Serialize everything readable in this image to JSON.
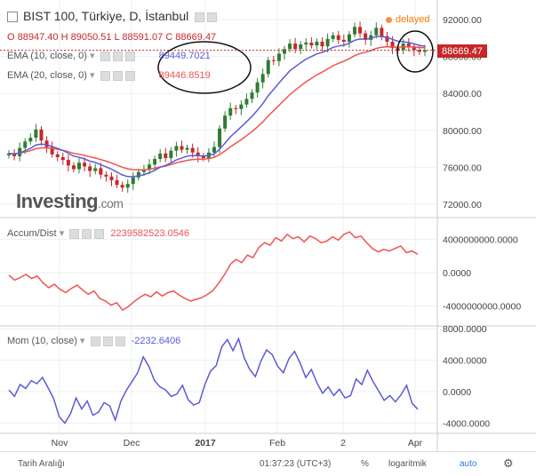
{
  "header": {
    "title": "BIST 100, Türkiye, D, İstanbul",
    "ohlc": {
      "o_label": "O",
      "o": "88947.40",
      "h_label": "H",
      "h": "89050.51",
      "l_label": "L",
      "l": "88591.07",
      "c_label": "C",
      "c": "88669.47"
    },
    "delayed": "delayed"
  },
  "indicators": {
    "ema10": {
      "label": "EMA (10, close, 0)",
      "value": "89449.7021"
    },
    "ema20": {
      "label": "EMA (20, close, 0)",
      "value": "89446.8519"
    },
    "accum": {
      "label": "Accum/Dist",
      "value": "2239582523.0546"
    },
    "mom": {
      "label": "Mom (10, close)",
      "value": "-2232.6406"
    }
  },
  "logo": {
    "main": "Investing",
    "suffix": ".com"
  },
  "price_axis": {
    "ticks": [
      "92000.00",
      "88000.00",
      "84000.00",
      "80000.00",
      "76000.00",
      "72000.00"
    ],
    "last_price": "88669.47"
  },
  "accum_axis": {
    "ticks": [
      "4000000000.0000",
      "0.0000",
      "-4000000000.0000"
    ]
  },
  "mom_axis": {
    "ticks": [
      "8000.0000",
      "4000.0000",
      "0.0000",
      "-4000.0000"
    ]
  },
  "time_axis": {
    "ticks": [
      "Nov",
      "Dec",
      "2017",
      "Feb",
      "2",
      "Apr"
    ]
  },
  "footer": {
    "date_range": "Tarih Aralığı",
    "time": "01:37:23 (UTC+3)",
    "percent": "%",
    "log": "logaritmik",
    "auto": "auto"
  },
  "colors": {
    "up": "#2e7d32",
    "down": "#c62828",
    "ema10": "#5b5bd6",
    "ema20": "#ef5350",
    "accum": "#ef5350",
    "mom": "#5b5bd6",
    "price_tag": "#c62828"
  },
  "chart_data": [
    {
      "type": "candlestick",
      "series": [
        {
          "name": "BIST 100",
          "close": [
            77500,
            77200,
            78100,
            78800,
            79200,
            80100,
            78900,
            78200,
            77400,
            77100,
            76800,
            76200,
            75800,
            76500,
            76100,
            75600,
            75900,
            75200,
            75000,
            74600,
            74100,
            73800,
            74200,
            74900,
            75500,
            75800,
            76300,
            76900,
            77500,
            77000,
            77800,
            78300,
            77900,
            78100,
            77600,
            77200,
            77000,
            77600,
            78200,
            80200,
            81600,
            82400,
            82300,
            82800,
            83400,
            84100,
            85200,
            86100,
            87600,
            87500,
            88300,
            88800,
            89400,
            88800,
            89300,
            89500,
            89200,
            89600,
            89100,
            89900,
            90300,
            89800,
            89600,
            90400,
            91200,
            90500,
            89800,
            90300,
            91100,
            90200,
            89600,
            88900,
            88700,
            89400,
            89100,
            88700,
            88500,
            88669
          ]
        }
      ],
      "y_ticks": [
        92000,
        88000,
        84000,
        80000,
        76000,
        72000
      ],
      "ylim": [
        70400,
        93800
      ]
    },
    {
      "type": "line",
      "series": [
        {
          "name": "Accum/Dist",
          "values": [
            -0.3,
            -0.9,
            -0.6,
            -0.2,
            -0.7,
            -0.4,
            -1.2,
            -1.8,
            -1.4,
            -2.0,
            -2.4,
            -1.9,
            -1.5,
            -2.1,
            -2.6,
            -2.2,
            -3.1,
            -3.4,
            -3.9,
            -3.6,
            -4.5,
            -4.1,
            -3.5,
            -3.0,
            -2.6,
            -2.9,
            -2.3,
            -2.8,
            -2.4,
            -2.2,
            -2.7,
            -3.1,
            -3.4,
            -3.2,
            -3.0,
            -2.6,
            -2.1,
            -1.2,
            -0.2,
            1.0,
            1.6,
            1.2,
            2.1,
            1.8,
            3.0,
            3.6,
            3.3,
            4.2,
            3.8,
            4.6,
            4.1,
            4.3,
            3.7,
            4.4,
            4.1,
            3.6,
            3.8,
            4.3,
            3.9,
            4.6,
            4.9,
            4.2,
            4.4,
            3.6,
            2.9,
            2.5,
            2.8,
            2.6,
            2.9,
            3.2,
            2.4,
            2.6,
            2.2
          ]
        }
      ],
      "y_ticks": [
        4000000000,
        0,
        -4000000000
      ]
    },
    {
      "type": "line",
      "series": [
        {
          "name": "Mom (10, close)",
          "values": [
            200,
            -600,
            900,
            400,
            1400,
            1000,
            1800,
            500,
            -900,
            -3200,
            -4000,
            -2800,
            -800,
            -2200,
            -1200,
            -3000,
            -2600,
            -1400,
            -1800,
            -3600,
            -1200,
            200,
            1300,
            2400,
            4400,
            3200,
            1400,
            600,
            200,
            -600,
            -300,
            800,
            -1000,
            -1700,
            -1400,
            900,
            2600,
            3300,
            5700,
            6600,
            5200,
            6700,
            4300,
            2800,
            1900,
            3900,
            5300,
            4700,
            3200,
            2400,
            4200,
            5100,
            3600,
            1800,
            2800,
            1100,
            -200,
            600,
            -500,
            300,
            -800,
            -500,
            1600,
            900,
            2700,
            1300,
            100,
            -1100,
            -500,
            -1300,
            -400,
            800,
            -1500,
            -2232
          ]
        }
      ],
      "y_ticks": [
        8000,
        4000,
        0,
        -4000
      ]
    }
  ]
}
